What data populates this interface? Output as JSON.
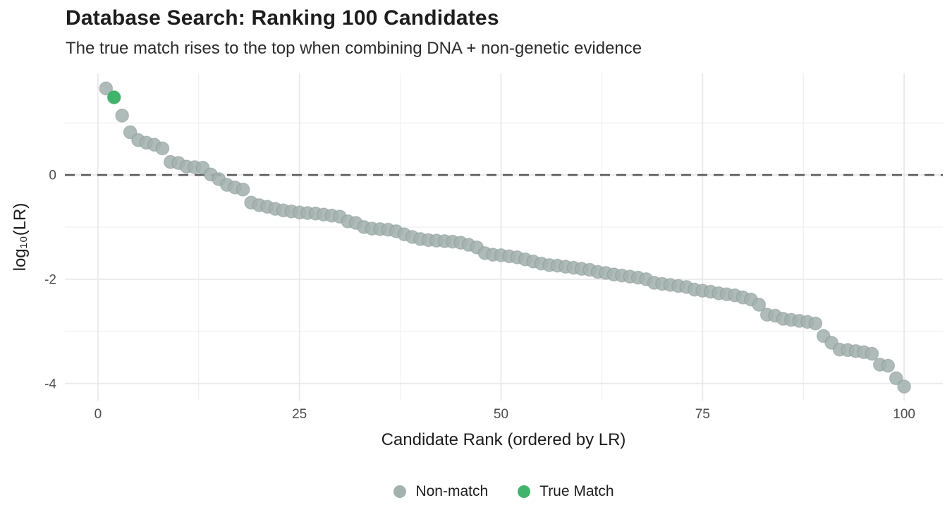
{
  "title": "Database Search: Ranking 100 Candidates",
  "subtitle": "The true match rises to the top when combining DNA + non-genetic evidence",
  "chart_data": {
    "type": "scatter",
    "xlabel": "Candidate Rank (ordered by LR)",
    "ylabel": "log₁₀(LR)",
    "xlim": [
      -4.1,
      104.8
    ],
    "ylim": [
      -4.33,
      1.95
    ],
    "x_ticks": [
      0,
      25,
      50,
      75,
      100
    ],
    "x_minor_gridlines": [
      12.5,
      37.5,
      62.5,
      87.5
    ],
    "y_ticks": [
      0,
      -2,
      -4
    ],
    "y_minor_gridlines": [
      1,
      -1,
      -3
    ],
    "reference_line_y": 0,
    "grid": true,
    "legend_position": "bottom",
    "true_match_rank": 2,
    "series": [
      {
        "name": "Non-match",
        "color": "#a4b2af"
      },
      {
        "name": "True Match",
        "color": "#41b46c"
      }
    ],
    "x": "candidate ranks 1..100 (index of values array + 1)",
    "values": [
      1.66,
      1.49,
      1.14,
      0.82,
      0.67,
      0.62,
      0.58,
      0.51,
      0.25,
      0.23,
      0.16,
      0.15,
      0.14,
      0.01,
      -0.08,
      -0.19,
      -0.24,
      -0.28,
      -0.53,
      -0.58,
      -0.61,
      -0.65,
      -0.68,
      -0.7,
      -0.72,
      -0.73,
      -0.74,
      -0.76,
      -0.78,
      -0.8,
      -0.89,
      -0.92,
      -1.0,
      -1.03,
      -1.04,
      -1.05,
      -1.08,
      -1.14,
      -1.19,
      -1.23,
      -1.25,
      -1.26,
      -1.27,
      -1.28,
      -1.3,
      -1.34,
      -1.39,
      -1.5,
      -1.53,
      -1.54,
      -1.56,
      -1.58,
      -1.62,
      -1.66,
      -1.7,
      -1.73,
      -1.74,
      -1.76,
      -1.78,
      -1.8,
      -1.82,
      -1.86,
      -1.88,
      -1.91,
      -1.93,
      -1.95,
      -1.97,
      -2.0,
      -2.07,
      -2.09,
      -2.11,
      -2.13,
      -2.15,
      -2.2,
      -2.22,
      -2.24,
      -2.27,
      -2.29,
      -2.31,
      -2.35,
      -2.39,
      -2.49,
      -2.68,
      -2.7,
      -2.76,
      -2.78,
      -2.8,
      -2.82,
      -2.85,
      -3.09,
      -3.22,
      -3.35,
      -3.36,
      -3.38,
      -3.4,
      -3.43,
      -3.64,
      -3.66,
      -3.9,
      -4.06
    ]
  },
  "style": {
    "gridline_major_color": "#e9e9e9",
    "gridline_minor_color": "#f1f1f1",
    "reference_line_color": "#5a5a5a",
    "point_stroke_nonmatch": "#839591",
    "point_stroke_truematch": "#2f9e58",
    "tick_label_color": "#4d4d4d",
    "background": "#ffffff"
  }
}
